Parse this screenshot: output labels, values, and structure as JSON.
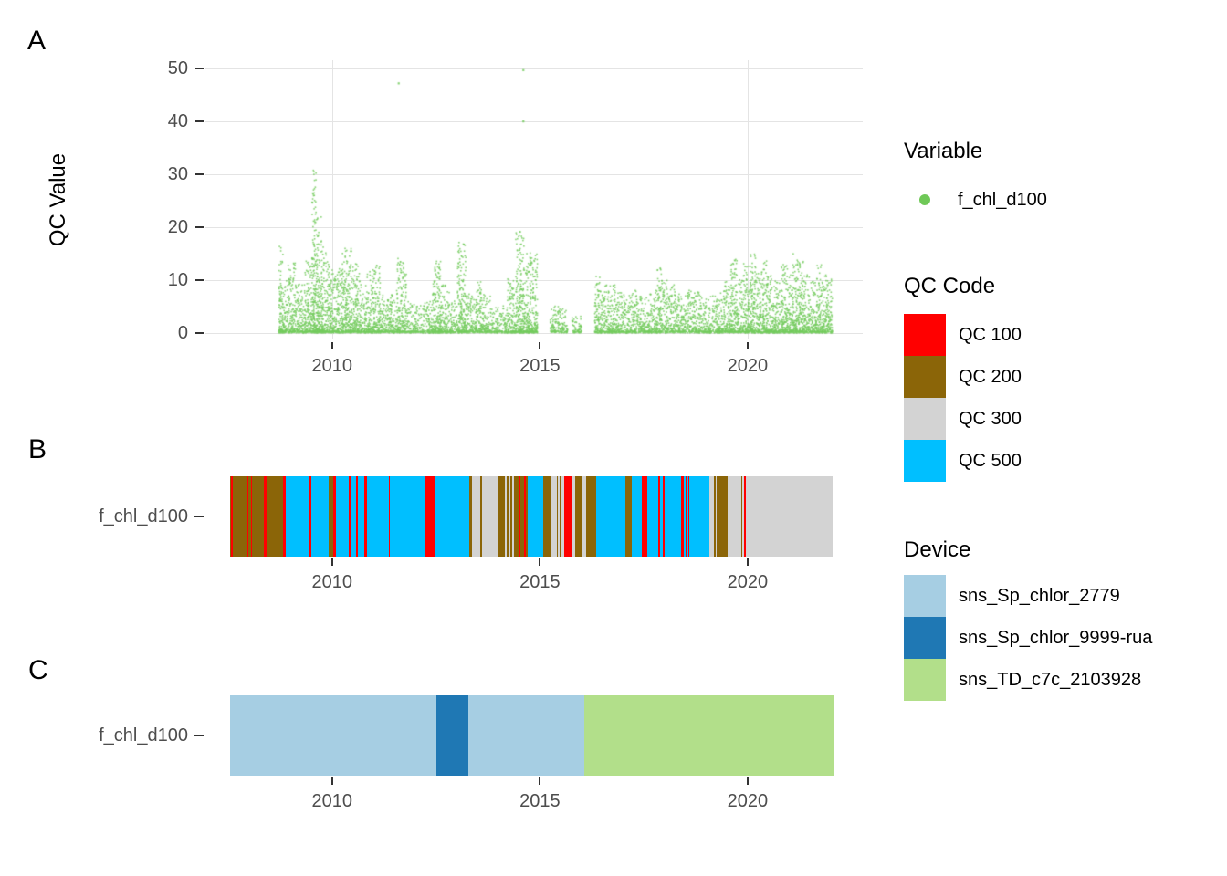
{
  "panels": {
    "a": {
      "label": "A"
    },
    "b": {
      "label": "B"
    },
    "c": {
      "label": "C"
    }
  },
  "axes": {
    "qc_value_title": "QC Value",
    "row_label_b": "f_chl_d100",
    "row_label_c": "f_chl_d100"
  },
  "legends": {
    "variable": {
      "title": "Variable",
      "items": [
        {
          "label": "f_chl_d100",
          "color": "#6FC857"
        }
      ]
    },
    "qc_code": {
      "title": "QC Code",
      "items": [
        {
          "label": "QC 100",
          "color": "#FF0000"
        },
        {
          "label": "QC 200",
          "color": "#8B6508"
        },
        {
          "label": "QC 300",
          "color": "#D3D3D3"
        },
        {
          "label": "QC 500",
          "color": "#00BFFF"
        }
      ]
    },
    "device": {
      "title": "Device",
      "items": [
        {
          "label": "sns_Sp_chlor_2779",
          "color": "#A6CEE3"
        },
        {
          "label": "sns_Sp_chlor_9999-rua",
          "color": "#1F78B4"
        },
        {
          "label": "sns_TD_c7c_2103928",
          "color": "#B2DF8A"
        }
      ]
    }
  },
  "chart_data": [
    {
      "type": "scatter",
      "title": "Panel A: QC Value time series",
      "ylabel": "QC Value",
      "xlabel": "",
      "series": [
        {
          "name": "f_chl_d100",
          "color": "#74CB5E"
        }
      ],
      "x_domain": [
        2006.95,
        2022.77
      ],
      "ylim": [
        0,
        52
      ],
      "x_ticks": [
        2010,
        2015,
        2020
      ],
      "y_ticks": [
        0,
        10,
        20,
        30,
        40,
        50
      ],
      "grid": true,
      "legend_position": "right",
      "envelope_year_max": [
        [
          2008.75,
          17
        ],
        [
          2008.85,
          10
        ],
        [
          2009.0,
          13
        ],
        [
          2009.2,
          9
        ],
        [
          2009.45,
          14
        ],
        [
          2009.55,
          31
        ],
        [
          2009.65,
          22
        ],
        [
          2009.8,
          16
        ],
        [
          2009.95,
          13
        ],
        [
          2010.1,
          12
        ],
        [
          2010.35,
          16
        ],
        [
          2010.55,
          13
        ],
        [
          2010.75,
          9
        ],
        [
          2010.9,
          12
        ],
        [
          2011.05,
          13
        ],
        [
          2011.25,
          7
        ],
        [
          2011.45,
          8
        ],
        [
          2011.65,
          14
        ],
        [
          2011.9,
          6
        ],
        [
          2012.1,
          5
        ],
        [
          2012.3,
          6
        ],
        [
          2012.5,
          15
        ],
        [
          2012.7,
          9
        ],
        [
          2012.9,
          6
        ],
        [
          2013.1,
          17
        ],
        [
          2013.3,
          8
        ],
        [
          2013.5,
          10
        ],
        [
          2013.7,
          7
        ],
        [
          2013.9,
          5
        ],
        [
          2014.1,
          5
        ],
        [
          2014.3,
          10
        ],
        [
          2014.5,
          19
        ],
        [
          2014.7,
          15
        ],
        [
          2014.85,
          15
        ],
        [
          2015.0,
          0
        ],
        [
          2015.15,
          0
        ],
        [
          2015.3,
          5
        ],
        [
          2015.5,
          5
        ],
        [
          2015.6,
          4
        ],
        [
          2015.7,
          0
        ],
        [
          2015.8,
          3
        ],
        [
          2015.95,
          3
        ],
        [
          2016.05,
          0
        ],
        [
          2016.25,
          0
        ],
        [
          2016.35,
          11
        ],
        [
          2016.5,
          9
        ],
        [
          2016.65,
          9
        ],
        [
          2016.8,
          9
        ],
        [
          2016.95,
          8
        ],
        [
          2017.1,
          7
        ],
        [
          2017.25,
          8
        ],
        [
          2017.4,
          7
        ],
        [
          2017.55,
          7
        ],
        [
          2017.7,
          8
        ],
        [
          2017.85,
          12
        ],
        [
          2018.0,
          10
        ],
        [
          2018.15,
          9
        ],
        [
          2018.3,
          8
        ],
        [
          2018.45,
          7
        ],
        [
          2018.6,
          8
        ],
        [
          2018.75,
          8
        ],
        [
          2018.9,
          7
        ],
        [
          2019.05,
          7
        ],
        [
          2019.2,
          7
        ],
        [
          2019.35,
          8
        ],
        [
          2019.5,
          10
        ],
        [
          2019.65,
          14
        ],
        [
          2019.8,
          10
        ],
        [
          2019.95,
          13
        ],
        [
          2020.1,
          15
        ],
        [
          2020.25,
          12
        ],
        [
          2020.4,
          14
        ],
        [
          2020.55,
          11
        ],
        [
          2020.7,
          10
        ],
        [
          2020.85,
          13
        ],
        [
          2021.0,
          12
        ],
        [
          2021.1,
          15
        ],
        [
          2021.25,
          14
        ],
        [
          2021.4,
          11
        ],
        [
          2021.55,
          10
        ],
        [
          2021.7,
          13
        ],
        [
          2021.85,
          11
        ],
        [
          2021.97,
          10
        ]
      ],
      "outliers": [
        [
          2011.6,
          47.2
        ],
        [
          2014.6,
          49.7
        ],
        [
          2014.6,
          40.0
        ]
      ]
    },
    {
      "type": "bar",
      "title": "Panel B: QC Code timeline",
      "row": "f_chl_d100",
      "x_range": [
        2007.54,
        2022.07
      ],
      "x_ticks": [
        2010,
        2015,
        2020
      ],
      "color_map": {
        "100": "#FF0000",
        "200": "#8B6508",
        "300": "#D3D3D3",
        "500": "#00BFFF"
      },
      "segments": [
        [
          "200",
          1
        ],
        [
          "100",
          2
        ],
        [
          "200",
          16
        ],
        [
          "100",
          1.5
        ],
        [
          "200",
          2.5
        ],
        [
          "100",
          1.5
        ],
        [
          "200",
          12.5
        ],
        [
          "100",
          3
        ],
        [
          "200",
          18
        ],
        [
          "100",
          3
        ],
        [
          "500",
          26
        ],
        [
          "100",
          2
        ],
        [
          "500",
          19
        ],
        [
          "200",
          5
        ],
        [
          "100",
          3.5
        ],
        [
          "500",
          14
        ],
        [
          "100",
          3
        ],
        [
          "500",
          5
        ],
        [
          "100",
          2
        ],
        [
          "500",
          7
        ],
        [
          "100",
          3
        ],
        [
          "500",
          23.5
        ],
        [
          "100",
          1
        ],
        [
          "500",
          40
        ],
        [
          "100",
          10
        ],
        [
          "500",
          38
        ],
        [
          "200",
          3
        ],
        [
          "300",
          9
        ],
        [
          "200",
          2
        ],
        [
          "300",
          17
        ],
        [
          "200",
          8
        ],
        [
          "300",
          2
        ],
        [
          "200",
          2
        ],
        [
          "300",
          2
        ],
        [
          "200",
          2
        ],
        [
          "300",
          2
        ],
        [
          "200",
          5
        ],
        [
          "100",
          2
        ],
        [
          "200",
          4
        ],
        [
          "100",
          1.5
        ],
        [
          "200",
          2.5
        ],
        [
          "500",
          17
        ],
        [
          "200",
          9
        ],
        [
          "300",
          6
        ],
        [
          "200",
          1
        ],
        [
          "300",
          2
        ],
        [
          "200",
          2
        ],
        [
          "300",
          3
        ],
        [
          "100",
          9
        ],
        [
          "300",
          3
        ],
        [
          "200",
          7
        ],
        [
          "300",
          5
        ],
        [
          "200",
          11
        ],
        [
          "500",
          32
        ],
        [
          "200",
          7
        ],
        [
          "500",
          11
        ],
        [
          "100",
          6
        ],
        [
          "500",
          12
        ],
        [
          "100",
          2
        ],
        [
          "500",
          3
        ],
        [
          "100",
          2
        ],
        [
          "500",
          18
        ],
        [
          "100",
          3
        ],
        [
          "500",
          2
        ],
        [
          "100",
          2
        ],
        [
          "500",
          1
        ],
        [
          "100",
          1
        ],
        [
          "500",
          22
        ],
        [
          "300",
          5
        ],
        [
          "200",
          2.5
        ],
        [
          "300",
          1.5
        ],
        [
          "200",
          12
        ],
        [
          "300",
          12
        ],
        [
          "200",
          1
        ],
        [
          "300",
          2
        ],
        [
          "200",
          1
        ],
        [
          "300",
          2
        ],
        [
          "100",
          2
        ],
        [
          "300",
          95
        ]
      ]
    },
    {
      "type": "bar",
      "title": "Panel C: Device timeline",
      "row": "f_chl_d100",
      "x_range": [
        2007.54,
        2022.07
      ],
      "x_ticks": [
        2010,
        2015,
        2020
      ],
      "color_map": {
        "sns_Sp_chlor_2779": "#A6CEE3",
        "sns_Sp_chlor_9999-rua": "#1F78B4",
        "sns_TD_c7c_2103928": "#B2DF8A"
      },
      "segments": [
        [
          "sns_Sp_chlor_2779",
          226
        ],
        [
          "sns_Sp_chlor_9999-rua",
          35
        ],
        [
          "sns_Sp_chlor_2779",
          127
        ],
        [
          "sns_TD_c7c_2103928",
          273
        ]
      ]
    }
  ]
}
